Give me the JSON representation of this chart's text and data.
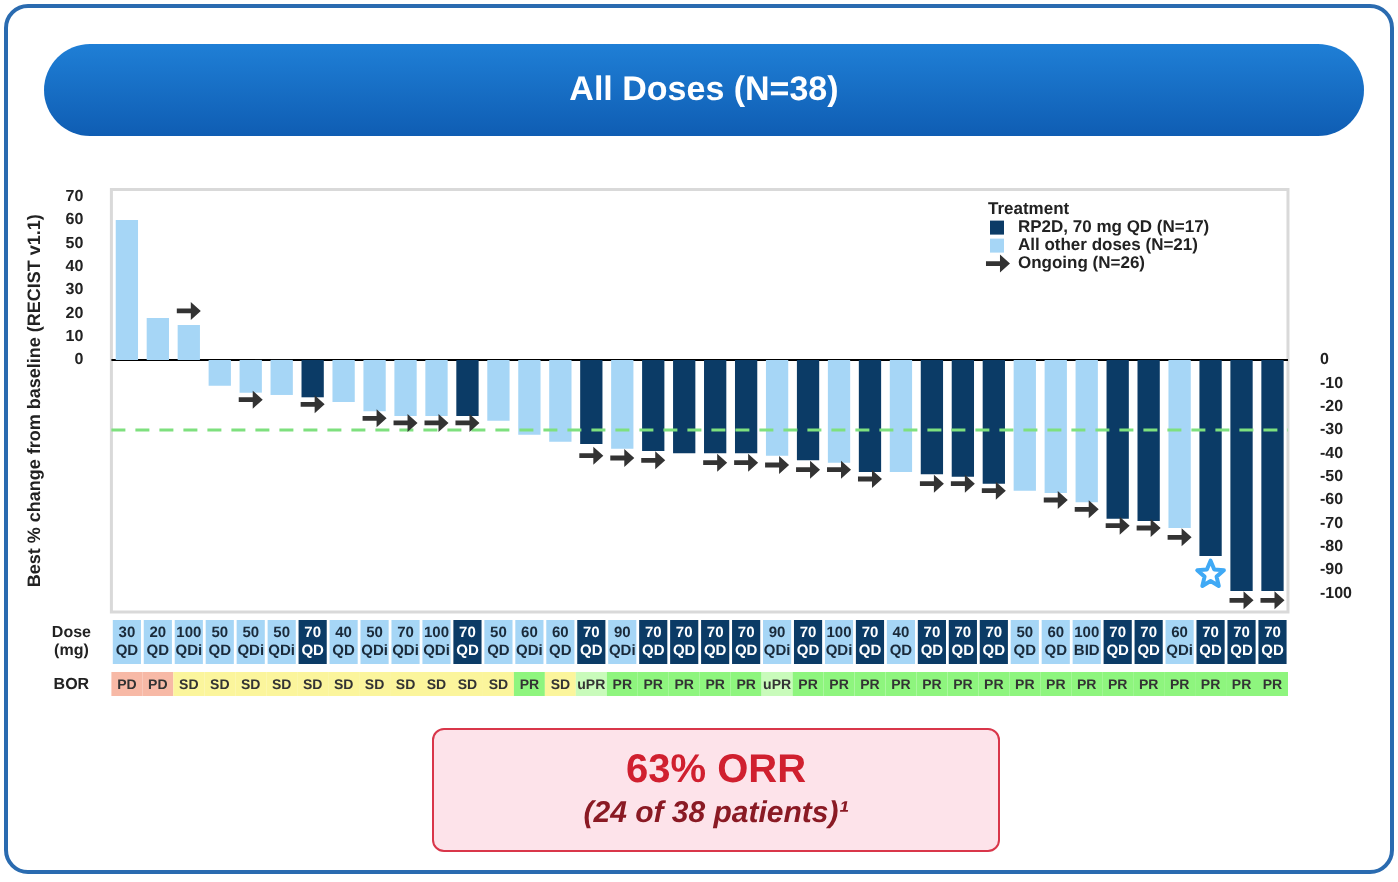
{
  "chart_data": {
    "type": "bar",
    "title": "All Doses (N=38)",
    "ylabel": "Best % change from baseline (RECIST v1.1)",
    "xlabel": "Dose (mg)",
    "legend_title": "Treatment",
    "legend": "top right",
    "categories": [
      "30 QD",
      "20 QD",
      "100 QDi",
      "50 QD",
      "50 QDi",
      "50 QDi",
      "70 QD",
      "40 QD",
      "50 QDi",
      "70 QDi",
      "100 QDi",
      "70 QD",
      "50 QD",
      "60 QDi",
      "60 QD",
      "70 QD",
      "90 QDi",
      "70 QD",
      "70 QD",
      "70 QD",
      "70 QD",
      "90 QDi",
      "70 QD",
      "100 QDi",
      "70 QD",
      "40 QD",
      "70 QD",
      "70 QD",
      "70 QD",
      "50 QD",
      "60 QD",
      "100 BID",
      "70 QD",
      "70 QD",
      "60 QDi",
      "70 QD",
      "70 QD",
      "70 QD"
    ],
    "series": [
      {
        "name": "RP2D, 70 mg QD (N=17)",
        "color": "#0b3b66",
        "values": [
          null,
          null,
          null,
          null,
          null,
          null,
          -16,
          null,
          null,
          null,
          null,
          -24,
          null,
          null,
          null,
          -36,
          null,
          -39,
          -40,
          -40,
          -40,
          null,
          -43,
          null,
          -48,
          null,
          -49,
          -50,
          -53,
          null,
          null,
          null,
          -68,
          -69,
          null,
          -84,
          -99,
          -99
        ]
      },
      {
        "name": "All other doses (N=21)",
        "color": "#a6d6f6",
        "values": [
          60,
          18,
          15,
          -11,
          -14,
          -15,
          null,
          -18,
          -22,
          -24,
          -24,
          null,
          -26,
          -32,
          -35,
          null,
          -38,
          null,
          null,
          null,
          null,
          -41,
          null,
          -44,
          null,
          -48,
          null,
          null,
          null,
          -56,
          -57,
          -61,
          null,
          null,
          -72,
          null,
          null,
          null
        ]
      },
      {
        "type": "scatter",
        "name": "Ongoing (N=26)",
        "marker": "triangle",
        "color": "#333333",
        "values": [
          null,
          null,
          21,
          null,
          -17,
          null,
          -19,
          null,
          -25,
          -27,
          -27,
          -27,
          null,
          null,
          null,
          -41,
          -42,
          -43,
          null,
          -44,
          -44,
          -45,
          -47,
          -47,
          -51,
          null,
          -53,
          -53,
          -56,
          null,
          -60,
          -64,
          -71,
          -72,
          -76,
          null,
          -103,
          -103
        ]
      },
      {
        "type": "scatter",
        "marker": "star",
        "color": "#3fa9f5",
        "values": [
          null,
          null,
          null,
          null,
          null,
          null,
          null,
          null,
          null,
          null,
          null,
          null,
          null,
          null,
          null,
          null,
          null,
          null,
          null,
          null,
          null,
          null,
          null,
          null,
          null,
          null,
          null,
          null,
          null,
          null,
          null,
          null,
          null,
          null,
          null,
          -92,
          null,
          null
        ]
      }
    ],
    "ylim": [
      -108,
      73
    ],
    "yticks": [
      0,
      10,
      20,
      30,
      40,
      50,
      60,
      70
    ],
    "y2lim": [
      -108,
      73
    ],
    "y2ticks": [
      0,
      -10,
      -20,
      -30,
      -40,
      -50,
      -60,
      -70,
      -80,
      -90,
      -100
    ],
    "ref_lines": [
      {
        "axis": "y",
        "value": -30,
        "color": "#7ee07e",
        "line_style": "dashed"
      }
    ],
    "annotations": [
      "BOR",
      "PD",
      "PD",
      "SD",
      "SD",
      "SD",
      "SD",
      "SD",
      "SD",
      "SD",
      "SD",
      "SD",
      "SD",
      "SD",
      "PR",
      "SD",
      "uPR",
      "PR",
      "PR",
      "PR",
      "PR",
      "PR",
      "uPR",
      "PR",
      "PR",
      "PR",
      "PR",
      "PR",
      "PR",
      "PR",
      "PR",
      "PR",
      "PR",
      "PR",
      "PR",
      "PR",
      "PR",
      "PR",
      "PR",
      "63% ORR",
      "(24 of 38 patients)¹"
    ]
  }
}
